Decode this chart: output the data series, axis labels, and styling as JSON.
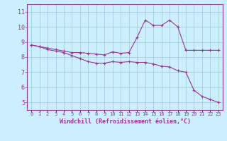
{
  "xlabel": "Windchill (Refroidissement éolien,°C)",
  "bg_color": "#cceeff",
  "line_color": "#993399",
  "grid_color": "#99cccc",
  "x_values": [
    0,
    1,
    2,
    3,
    4,
    5,
    6,
    7,
    8,
    9,
    10,
    11,
    12,
    13,
    14,
    15,
    16,
    17,
    18,
    19,
    20,
    21,
    22,
    23
  ],
  "line1_y": [
    8.8,
    8.7,
    8.6,
    8.5,
    8.4,
    8.3,
    8.3,
    8.25,
    8.2,
    8.15,
    8.35,
    8.25,
    8.3,
    9.3,
    10.45,
    10.1,
    10.1,
    10.45,
    10.0,
    8.45,
    8.45,
    8.45,
    8.45,
    8.45
  ],
  "line2_y": [
    8.8,
    8.7,
    8.5,
    8.4,
    8.3,
    8.1,
    7.9,
    7.7,
    7.6,
    7.6,
    7.7,
    7.65,
    7.7,
    7.65,
    7.65,
    7.55,
    7.4,
    7.35,
    7.1,
    7.0,
    5.8,
    5.4,
    5.2,
    5.0
  ],
  "ylim": [
    4.5,
    11.5
  ],
  "xlim": [
    -0.5,
    23.5
  ],
  "yticks": [
    5,
    6,
    7,
    8,
    9,
    10,
    11
  ],
  "xtick_labels": [
    "0",
    "1",
    "2",
    "3",
    "4",
    "5",
    "6",
    "7",
    "8",
    "9",
    "10",
    "11",
    "12",
    "13",
    "14",
    "15",
    "16",
    "17",
    "18",
    "19",
    "20",
    "21",
    "22",
    "23"
  ],
  "ylabel_color": "#993399",
  "ylabel_bg": "#cceeff"
}
